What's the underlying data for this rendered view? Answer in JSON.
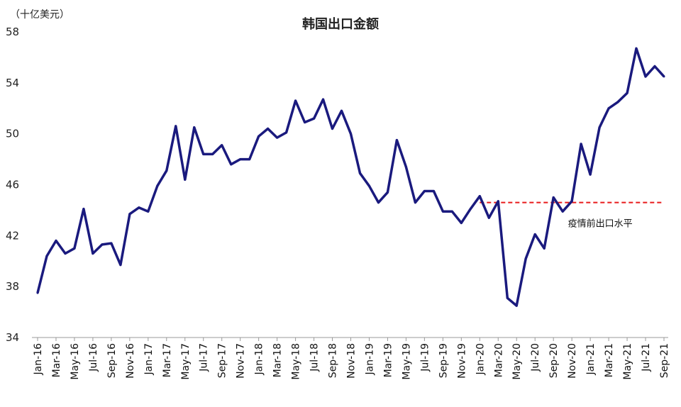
{
  "chart_data": {
    "type": "line",
    "title": "韩国出口金额",
    "unit_label": "（十亿美元）",
    "xlabel": "",
    "ylabel": "",
    "ylim": [
      34,
      58
    ],
    "yticks": [
      34,
      38,
      42,
      46,
      50,
      54,
      58
    ],
    "grid": false,
    "line_color": "#1a1a7e",
    "x": [
      "Jan-16",
      "Feb-16",
      "Mar-16",
      "Apr-16",
      "May-16",
      "Jun-16",
      "Jul-16",
      "Aug-16",
      "Sep-16",
      "Oct-16",
      "Nov-16",
      "Dec-16",
      "Jan-17",
      "Feb-17",
      "Mar-17",
      "Apr-17",
      "May-17",
      "Jun-17",
      "Jul-17",
      "Aug-17",
      "Sep-17",
      "Oct-17",
      "Nov-17",
      "Dec-17",
      "Jan-18",
      "Feb-18",
      "Mar-18",
      "Apr-18",
      "May-18",
      "Jun-18",
      "Jul-18",
      "Aug-18",
      "Sep-18",
      "Oct-18",
      "Nov-18",
      "Dec-18",
      "Jan-19",
      "Feb-19",
      "Mar-19",
      "Apr-19",
      "May-19",
      "Jun-19",
      "Jul-19",
      "Aug-19",
      "Sep-19",
      "Oct-19",
      "Nov-19",
      "Dec-19",
      "Jan-20",
      "Feb-20",
      "Mar-20",
      "Apr-20",
      "May-20",
      "Jun-20",
      "Jul-20",
      "Aug-20",
      "Sep-20",
      "Oct-20",
      "Nov-20",
      "Dec-20",
      "Jan-21",
      "Feb-21",
      "Mar-21",
      "Apr-21",
      "May-21",
      "Jun-21",
      "Jul-21",
      "Aug-21",
      "Sep-21"
    ],
    "series": [
      {
        "name": "",
        "values": [
          37.5,
          40.4,
          41.6,
          40.6,
          41.0,
          44.1,
          40.6,
          41.3,
          41.4,
          39.7,
          43.7,
          44.2,
          43.9,
          45.9,
          47.1,
          50.6,
          46.4,
          50.5,
          48.4,
          48.4,
          49.1,
          47.6,
          48.0,
          48.0,
          49.8,
          50.4,
          49.7,
          50.1,
          52.6,
          50.9,
          51.2,
          52.7,
          50.4,
          51.8,
          50.0,
          46.9,
          45.9,
          44.6,
          45.4,
          49.5,
          47.4,
          44.6,
          45.5,
          45.5,
          43.9,
          43.9,
          43.0,
          44.1,
          45.1,
          43.4,
          44.7,
          37.1,
          36.5,
          40.2,
          42.1,
          41.0,
          45.0,
          43.9,
          44.7,
          49.2,
          46.8,
          50.5,
          52.0,
          52.5,
          53.2,
          56.7,
          54.5,
          55.3,
          54.5
        ]
      }
    ],
    "reference_line": {
      "label": "疫情前出口水平",
      "value": 44.6,
      "start": "Jan-20",
      "end": "Sep-21",
      "color": "#e8191a"
    },
    "xtick_labels": [
      "Jan-16",
      "Mar-16",
      "May-16",
      "Jul-16",
      "Sep-16",
      "Nov-16",
      "Jan-17",
      "Mar-17",
      "May-17",
      "Jul-17",
      "Sep-17",
      "Nov-17",
      "Jan-18",
      "Mar-18",
      "May-18",
      "Jul-18",
      "Sep-18",
      "Nov-18",
      "Jan-19",
      "Mar-19",
      "May-19",
      "Jul-19",
      "Sep-19",
      "Nov-19",
      "Jan-20",
      "Mar-20",
      "May-20",
      "Jul-20",
      "Sep-20",
      "Nov-20",
      "Jan-21",
      "Mar-21",
      "May-21",
      "Jul-21",
      "Sep-21"
    ]
  }
}
